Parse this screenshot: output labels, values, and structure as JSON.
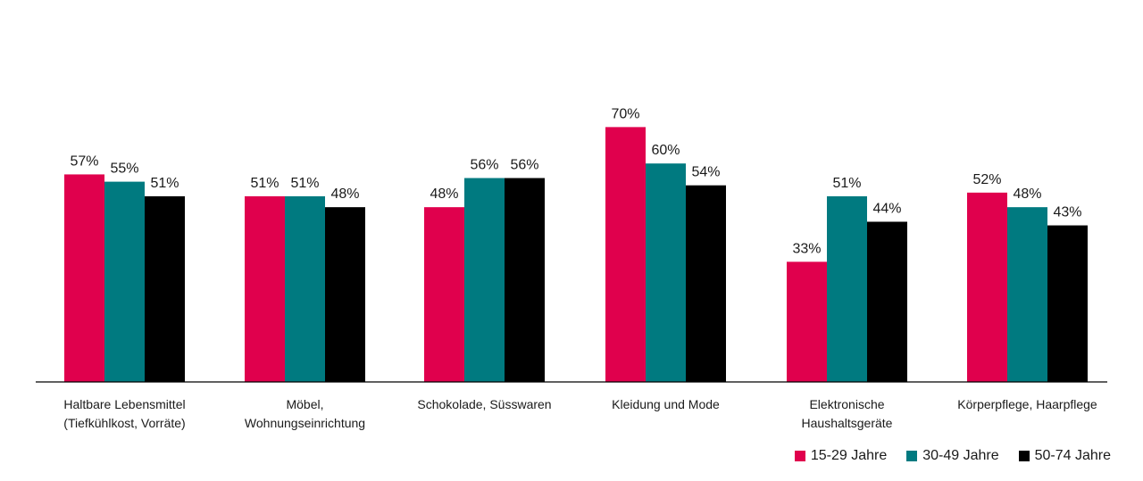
{
  "chart_data": {
    "type": "bar",
    "categories": [
      [
        "Haltbare Lebensmittel",
        "(Tiefkühlkost, Vorräte)"
      ],
      [
        "Möbel,",
        "Wohnungseinrichtung"
      ],
      [
        "Schokolade, Süsswaren"
      ],
      [
        "Kleidung und Mode"
      ],
      [
        "Elektronische",
        "Haushaltsgeräte"
      ],
      [
        "Körperpflege, Haarpflege"
      ]
    ],
    "series": [
      {
        "name": "15-29 Jahre",
        "color": "#E0004D",
        "values": [
          57,
          51,
          48,
          70,
          33,
          52
        ]
      },
      {
        "name": "30-49 Jahre",
        "color": "#007A80",
        "values": [
          55,
          51,
          56,
          60,
          51,
          48
        ]
      },
      {
        "name": "50-74 Jahre",
        "color": "#000000",
        "values": [
          51,
          48,
          56,
          54,
          44,
          43
        ]
      }
    ],
    "value_suffix": "%",
    "ylim": [
      0,
      80
    ],
    "grid": false,
    "legend_position": "bottom-right"
  }
}
